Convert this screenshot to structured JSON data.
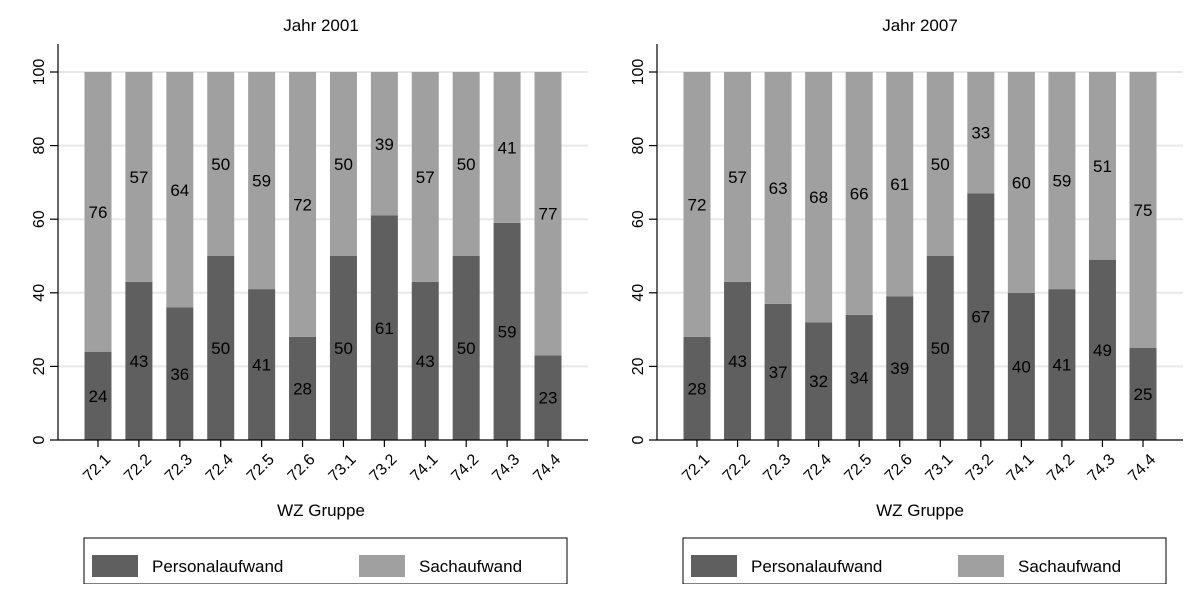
{
  "colors": {
    "personal": "#5f5f5f",
    "sach": "#a0a0a0",
    "grid": "#e8e8e8",
    "axis": "#000000",
    "background": "#ffffff"
  },
  "chart_data": [
    {
      "type": "bar",
      "stacked": true,
      "title": "Jahr 2001",
      "xlabel": "WZ Gruppe",
      "ylabel": "",
      "ylim": [
        0,
        100
      ],
      "yticks": [
        0,
        20,
        40,
        60,
        80,
        100
      ],
      "ytick_labels": [
        "0",
        "20",
        "40",
        "60",
        "80",
        "100"
      ],
      "grid": true,
      "legend_position": "bottom",
      "categories": [
        "72.1",
        "72.2",
        "72.3",
        "72.4",
        "72.5",
        "72.6",
        "73.1",
        "73.2",
        "74.1",
        "74.2",
        "74.3",
        "74.4"
      ],
      "series": [
        {
          "name": "Personalaufwand",
          "color": "#5f5f5f",
          "values": [
            24,
            43,
            36,
            50,
            41,
            28,
            50,
            61,
            43,
            50,
            59,
            23
          ]
        },
        {
          "name": "Sachaufwand",
          "color": "#a0a0a0",
          "values": [
            76,
            57,
            64,
            50,
            59,
            72,
            50,
            39,
            57,
            50,
            41,
            77
          ]
        }
      ]
    },
    {
      "type": "bar",
      "stacked": true,
      "title": "Jahr 2007",
      "xlabel": "WZ Gruppe",
      "ylabel": "",
      "ylim": [
        0,
        100
      ],
      "yticks": [
        0,
        20,
        40,
        60,
        80,
        100
      ],
      "ytick_labels": [
        "0",
        "20",
        "40",
        "60",
        "80",
        "100"
      ],
      "grid": true,
      "legend_position": "bottom",
      "categories": [
        "72.1",
        "72.2",
        "72.3",
        "72.4",
        "72.5",
        "72.6",
        "73.1",
        "73.2",
        "74.1",
        "74.2",
        "74.3",
        "74.4"
      ],
      "series": [
        {
          "name": "Personalaufwand",
          "color": "#5f5f5f",
          "values": [
            28,
            43,
            37,
            32,
            34,
            39,
            50,
            67,
            40,
            41,
            49,
            25
          ]
        },
        {
          "name": "Sachaufwand",
          "color": "#a0a0a0",
          "values": [
            72,
            57,
            63,
            68,
            66,
            61,
            50,
            33,
            60,
            59,
            51,
            75
          ]
        }
      ]
    }
  ]
}
